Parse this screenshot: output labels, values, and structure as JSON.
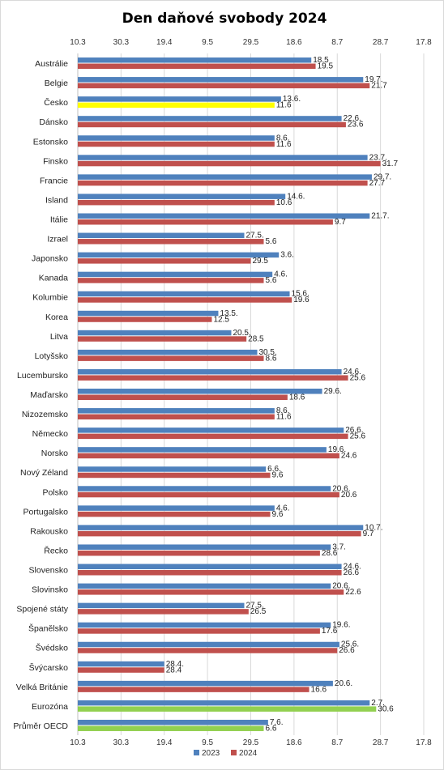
{
  "chart_data": {
    "type": "bar",
    "orientation": "horizontal",
    "title": "Den daňové svobody 2024",
    "axis_ticks": [
      "10.3",
      "30.3",
      "19.4",
      "9.5",
      "29.5",
      "18.6",
      "8.7",
      "28.7",
      "17.8"
    ],
    "axis_range_days": [
      0,
      160
    ],
    "axis_position": "top",
    "grid": true,
    "legend_position": "bottom",
    "categories": [
      "Austrálie",
      "Belgie",
      "Česko",
      "Dánsko",
      "Estonsko",
      "Finsko",
      "Francie",
      "Island",
      "Itálie",
      "Izrael",
      "Japonsko",
      "Kanada",
      "Kolumbie",
      "Korea",
      "Litva",
      "Lotyšsko",
      "Lucembursko",
      "Maďarsko",
      "Nizozemsko",
      "Německo",
      "Norsko",
      "Nový Zéland",
      "Polsko",
      "Portugalsko",
      "Rakousko",
      "Řecko",
      "Slovensko",
      "Slovinsko",
      "Spojené státy",
      "Španělsko",
      "Švédsko",
      "Švýcarsko",
      "Velká Británie",
      "Eurozóna",
      "Průměr OECD"
    ],
    "series": [
      {
        "name": "2023",
        "color": "#4f81bd",
        "values_days": [
          108,
          132,
          94,
          122,
          91,
          134,
          136,
          96,
          135,
          77,
          93,
          90,
          98,
          65,
          71,
          83,
          122,
          113,
          91,
          123,
          115,
          87,
          117,
          91,
          132,
          117,
          122,
          117,
          77,
          117,
          121,
          40,
          118,
          135,
          88
        ],
        "labels": [
          "18.5",
          "19.7.",
          "13.6.",
          "22.6.",
          "8.6.",
          "23.7.",
          "29.7.",
          "14.6.",
          "21.7.",
          "27.5.",
          "3.6.",
          "4.6.",
          "15.6.",
          "13.5.",
          "20.5.",
          "30.5.",
          "24.6.",
          "29.6.",
          "8.6.",
          "26.6.",
          "19.6.",
          "6.6.",
          "20.6.",
          "4.6.",
          "10.7.",
          "3.7.",
          "24.6.",
          "20.6.",
          "27.5.",
          "19.6.",
          "25.6.",
          "28.4.",
          "20.6.",
          "2.7.",
          "7.6."
        ]
      },
      {
        "name": "2024",
        "color": "#c0504d",
        "values_days": [
          110,
          135,
          91,
          124,
          91,
          140,
          134,
          91,
          118,
          86,
          80,
          86,
          99,
          62,
          78,
          86,
          125,
          97,
          91,
          125,
          121,
          89,
          121,
          89,
          131,
          112,
          122,
          123,
          79,
          112,
          120,
          40,
          107,
          138,
          86
        ],
        "labels": [
          "19.5",
          "21.7",
          "11.6",
          "23.6",
          "11.6",
          "31.7",
          "27.7",
          "10.6",
          "9.7",
          "5.6",
          "29.5",
          "5.6",
          "19.6",
          "12.5",
          "28.5",
          "8.6",
          "25.6",
          "18.6",
          "11.6",
          "25.6",
          "24.6",
          "9.6",
          "20.6",
          "9.6",
          "9.7",
          "28.6",
          "26.6",
          "22.6",
          "26.5",
          "17.6",
          "26.6",
          "28.4",
          "16.6",
          "30.6",
          "6.6"
        ]
      }
    ],
    "highlight": {
      "Česko": {
        "2024": "#ffff00"
      },
      "Eurozóna": {
        "2024": "#92d050"
      },
      "Průměr OECD": {
        "2024": "#92d050"
      }
    }
  }
}
